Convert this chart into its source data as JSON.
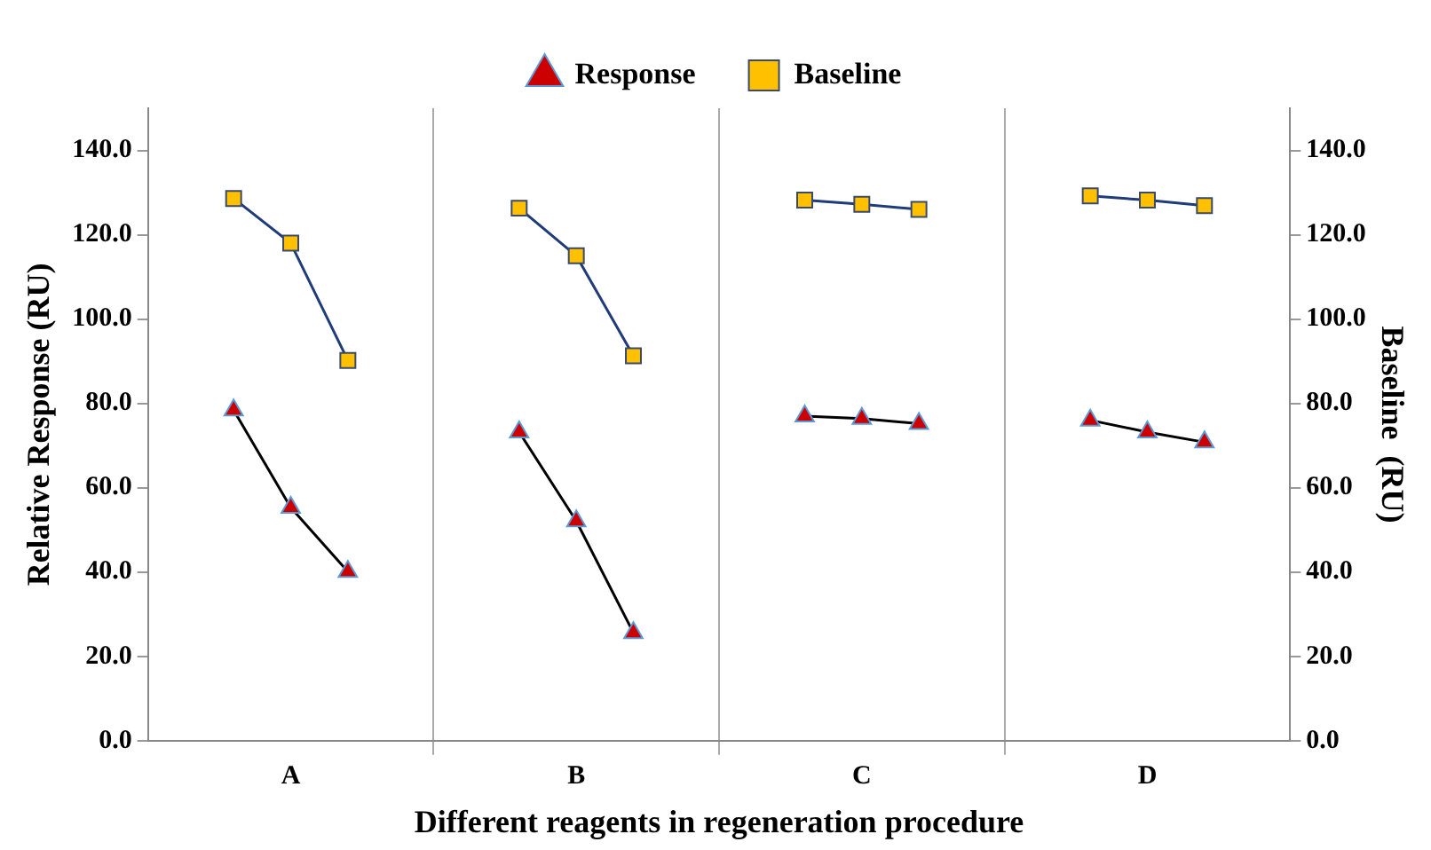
{
  "chart_data": {
    "type": "line",
    "xlabel": "Different reagents in regeneration procedure",
    "ylabel": "Relative Response (RU)",
    "y2label": "Baseline  (RU)",
    "categories": [
      null,
      null,
      "A",
      null,
      null,
      null,
      null,
      "B",
      null,
      null,
      null,
      null,
      "C",
      null,
      null,
      null,
      null,
      "D",
      null,
      null
    ],
    "series": [
      {
        "name": "Response",
        "color": "#000000",
        "marker": "triangle",
        "colors": [
          null,
          "#cc0000",
          "#cc0000",
          "#cc0000",
          null,
          null,
          "#cc0000",
          "#cc0000",
          "#cc0000",
          null,
          null,
          "#cc0000",
          "#cc0000",
          "#cc0000",
          null,
          null,
          "#cc0000",
          "#cc0000",
          "#cc0000",
          null
        ],
        "values": [
          null,
          78.4,
          55.3,
          40.1,
          null,
          null,
          73.2,
          52.1,
          25.6,
          null,
          null,
          77,
          76.4,
          75.2,
          null,
          null,
          76,
          73.2,
          70.8,
          null
        ]
      },
      {
        "name": "Baseline",
        "color": "#1f3b7a",
        "marker": "square",
        "axis": "y2",
        "colors": [
          null,
          "#ffc000",
          "#ffc000",
          "#ffc000",
          null,
          null,
          "#ffc000",
          "#ffc000",
          "#ffc000",
          null,
          null,
          "#ffc000",
          "#ffc000",
          "#ffc000",
          null,
          null,
          "#ffc000",
          "#ffc000",
          "#ffc000",
          null
        ],
        "values": [
          null,
          128.6,
          118,
          90.2,
          null,
          null,
          126.3,
          115,
          91.3,
          null,
          null,
          128.2,
          127.2,
          126,
          null,
          null,
          129.2,
          128.2,
          126.9,
          null
        ]
      }
    ],
    "ylim": [
      0,
      150
    ],
    "yticks": [
      {
        "value": 0,
        "label": "0.0"
      },
      {
        "value": 20,
        "label": "20.0"
      },
      {
        "value": 40,
        "label": "40.0"
      },
      {
        "value": 60,
        "label": "60.0"
      },
      {
        "value": 80,
        "label": "80.0"
      },
      {
        "value": 100,
        "label": "100.0"
      },
      {
        "value": 120,
        "label": "120.0"
      },
      {
        "value": 140,
        "label": "140.0"
      }
    ],
    "y2lim": [
      0,
      150
    ],
    "y2ticks": [
      {
        "value": 0,
        "label": "0.0"
      },
      {
        "value": 20,
        "label": "20.0"
      },
      {
        "value": 40,
        "label": "40.0"
      },
      {
        "value": 60,
        "label": "60.0"
      },
      {
        "value": 80,
        "label": "80.0"
      },
      {
        "value": 100,
        "label": "100.0"
      },
      {
        "value": 120,
        "label": "120.0"
      },
      {
        "value": 140,
        "label": "140.0"
      }
    ],
    "grid": "x",
    "legend": "top"
  }
}
